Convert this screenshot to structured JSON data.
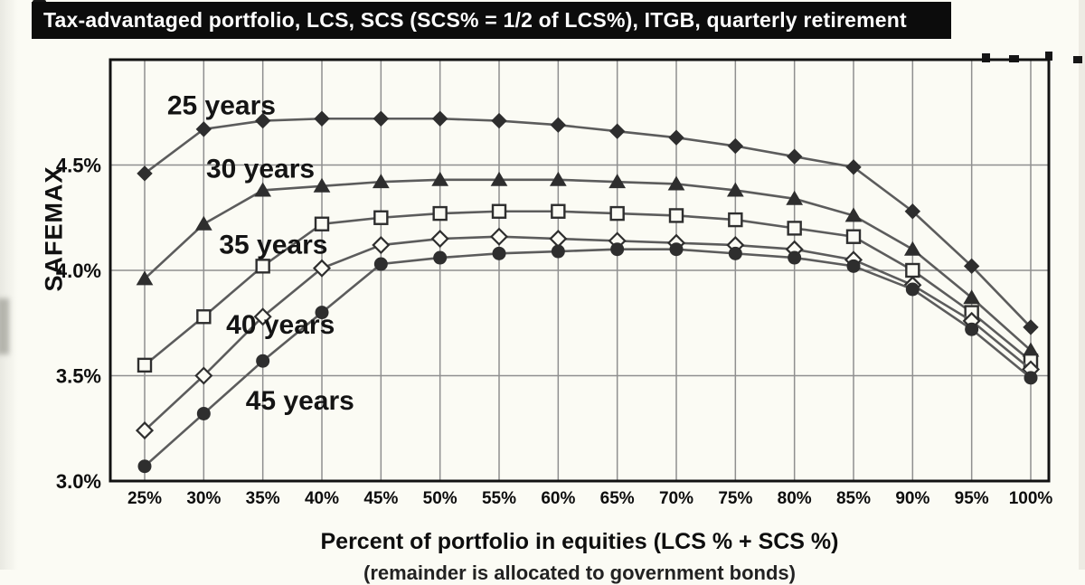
{
  "header": {
    "title": "Tax-advantaged portfolio, LCS, SCS (SCS% = 1/2 of LCS%), ITGB, quarterly retirement",
    "bar_color": "#0c0c0c",
    "text_color": "#ffffff"
  },
  "chart_data": {
    "type": "line",
    "title": "",
    "x_axis": {
      "label": "Percent of portfolio in equities (LCS % + SCS %)",
      "label_line2_partial": "(remainder is allocated to government bonds)",
      "categories": [
        "25%",
        "30%",
        "35%",
        "40%",
        "45%",
        "50%",
        "55%",
        "60%",
        "65%",
        "70%",
        "75%",
        "80%",
        "85%",
        "90%",
        "95%",
        "100%"
      ]
    },
    "y_axis": {
      "label": "SAFEMAX",
      "ticks": [
        "3.0%",
        "3.5%",
        "4.0%",
        "4.5%"
      ],
      "tick_values": [
        3.0,
        3.5,
        4.0,
        4.5
      ],
      "range": [
        3.0,
        5.0
      ],
      "gridlines": [
        3.5,
        4.0,
        4.5
      ]
    },
    "grid": true,
    "legend_position": "inline-annotations",
    "series": [
      {
        "name": "25 years",
        "marker": "diamond-filled",
        "values": [
          4.46,
          4.67,
          4.71,
          4.72,
          4.72,
          4.72,
          4.71,
          4.69,
          4.66,
          4.63,
          4.59,
          4.54,
          4.49,
          4.28,
          4.02,
          3.73
        ]
      },
      {
        "name": "30 years",
        "marker": "triangle-filled",
        "values": [
          3.96,
          4.22,
          4.38,
          4.4,
          4.42,
          4.43,
          4.43,
          4.43,
          4.42,
          4.41,
          4.38,
          4.34,
          4.26,
          4.1,
          3.87,
          3.62
        ]
      },
      {
        "name": "35 years",
        "marker": "square-open",
        "values": [
          3.55,
          3.78,
          4.02,
          4.22,
          4.25,
          4.27,
          4.28,
          4.28,
          4.27,
          4.26,
          4.24,
          4.2,
          4.16,
          4.0,
          3.8,
          3.57
        ]
      },
      {
        "name": "40 years",
        "marker": "diamond-open",
        "values": [
          3.24,
          3.5,
          3.78,
          4.01,
          4.12,
          4.15,
          4.16,
          4.15,
          4.14,
          4.13,
          4.12,
          4.1,
          4.05,
          3.93,
          3.76,
          3.53
        ]
      },
      {
        "name": "45 years",
        "marker": "circle-filled",
        "values": [
          3.07,
          3.32,
          3.57,
          3.8,
          4.03,
          4.06,
          4.08,
          4.09,
          4.1,
          4.1,
          4.08,
          4.06,
          4.02,
          3.91,
          3.72,
          3.49
        ]
      }
    ],
    "annotations": [
      {
        "text": "25 years",
        "xi": 0.38,
        "y": 4.74
      },
      {
        "text": "30 years",
        "xi": 1.04,
        "y": 4.44
      },
      {
        "text": "35 years",
        "xi": 1.26,
        "y": 4.08
      },
      {
        "text": "40 years",
        "xi": 1.38,
        "y": 3.7
      },
      {
        "text": "45 years",
        "xi": 1.71,
        "y": 3.34
      }
    ],
    "colors": {
      "line": "#5c5c5c",
      "marker": "#2e2e2e",
      "open_fill": "#fbfbf4",
      "grid": "#8f8f8f",
      "frame": "#121212"
    }
  }
}
